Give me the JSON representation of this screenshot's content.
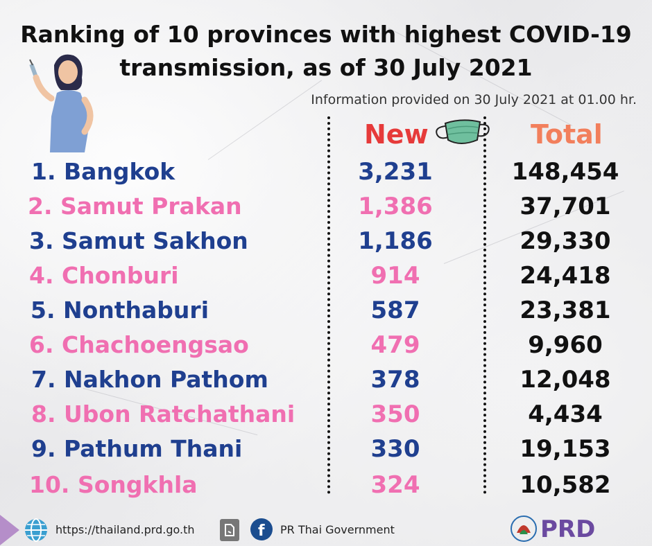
{
  "title_line1": "Ranking of 10 provinces with highest COVID-19",
  "title_line2": "transmission, as of 30 July 2021",
  "info": "Information provided on 30 July 2021 at 01.00 hr.",
  "headers": {
    "new": "New",
    "total": "Total"
  },
  "colors": {
    "blue": "#1f3f8f",
    "pink": "#f06fb1",
    "new_header": "#e63a3a",
    "total_header": "#f27f5c"
  },
  "rows": [
    {
      "name": "1. Bangkok",
      "new": "3,231",
      "total": "148,454",
      "color": "blue"
    },
    {
      "name": "2. Samut Prakan",
      "new": "1,386",
      "total": "37,701",
      "color": "pink"
    },
    {
      "name": "3. Samut Sakhon",
      "new": "1,186",
      "total": "29,330",
      "color": "blue"
    },
    {
      "name": "4. Chonburi",
      "new": "914",
      "total": "24,418",
      "color": "pink"
    },
    {
      "name": "5. Nonthaburi",
      "new": "587",
      "total": "23,381",
      "color": "blue"
    },
    {
      "name": "6. Chachoengsao",
      "new": "479",
      "total": "9,960",
      "color": "pink"
    },
    {
      "name": "7. Nakhon Pathom",
      "new": "378",
      "total": "12,048",
      "color": "blue"
    },
    {
      "name": "8. Ubon Ratchathani",
      "new": "350",
      "total": "4,434",
      "color": "pink"
    },
    {
      "name": "9. Pathum Thani",
      "new": "330",
      "total": "19,153",
      "color": "blue"
    },
    {
      "name": "10. Songkhla",
      "new": "324",
      "total": "10,582",
      "color": "pink"
    }
  ],
  "footer": {
    "website": "https://thailand.prd.go.th",
    "facebook": "PR Thai Government",
    "logo": "PRD"
  },
  "icons": [
    "nurse-illustration",
    "face-mask-icon",
    "globe-icon",
    "document-icon",
    "facebook-icon",
    "prd-logo"
  ]
}
